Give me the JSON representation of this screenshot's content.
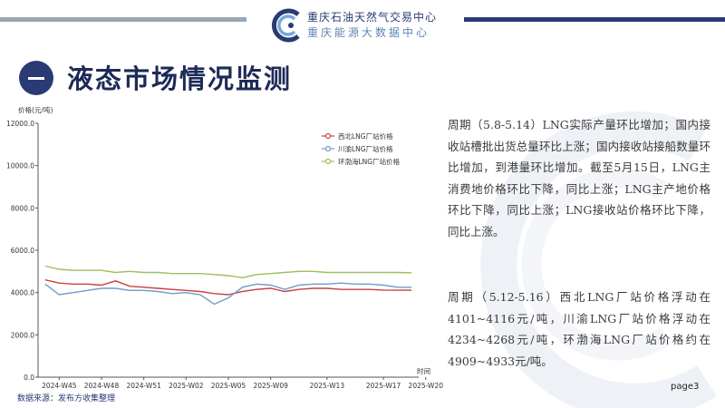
{
  "header": {
    "org_name": "重庆石油天然气交易中心",
    "org_sub": "重庆能源大数据中心",
    "section_num": "一",
    "section_title": "液态市场情况监测"
  },
  "text": {
    "para1": "周期（5.8-5.14）LNG实际产量环比增加；国内接收站槽批出货总量环比上涨；国内接收站接船数量环比增加，到港量环比增加。截至5月15日，LNG主消费地价格环比下降，同比上涨；LNG主产地价格环比下降，同比上涨；LNG接收站价格环比下降，同比上涨。",
    "para2": "周期（5.12-5.16）西北LNG厂站价格浮动在4101~4116元/吨，川渝LNG厂站价格浮动在4234~4268元/吨，环渤海LNG厂站价格约在4909~4933元/吨。"
  },
  "footer": {
    "source": "数据来源：发布方收集整理",
    "page": "page3"
  },
  "colors": {
    "navy": "#2a3a73",
    "northwest": "#c8423f",
    "sichuan": "#6f9cc8",
    "bohai": "#9cbf5d"
  },
  "chart_data": {
    "type": "line",
    "ylabel": "价格(元/吨)",
    "xlabel": "时间",
    "ylim": [
      0,
      12000
    ],
    "yticks": [
      "0.0",
      "2000.0",
      "4000.0",
      "6000.0",
      "8000.0",
      "10000.0",
      "12000.0"
    ],
    "xtick_labels": [
      "2024-W45",
      "2024-W48",
      "2024-W51",
      "2025-W02",
      "2025-W05",
      "2025-W09",
      "2025-W13",
      "2025-W17",
      "2025-W20"
    ],
    "xtick_index": [
      1,
      4,
      7,
      10,
      13,
      16,
      20,
      24,
      27
    ],
    "legend_position": "top-right",
    "grid": false,
    "series": [
      {
        "name": "西北LNG厂站价格",
        "color": "#c8423f",
        "values": [
          4600,
          4450,
          4400,
          4400,
          4350,
          4550,
          4300,
          4250,
          4200,
          4150,
          4100,
          4050,
          3950,
          3900,
          4050,
          4150,
          4200,
          4050,
          4150,
          4200,
          4200,
          4150,
          4150,
          4150,
          4120,
          4110,
          4110
        ]
      },
      {
        "name": "川渝LNG厂站价格",
        "color": "#6f9cc8",
        "values": [
          4400,
          3900,
          4000,
          4100,
          4200,
          4200,
          4100,
          4100,
          4050,
          3950,
          4000,
          3900,
          3450,
          3750,
          4250,
          4400,
          4350,
          4150,
          4350,
          4400,
          4400,
          4450,
          4400,
          4400,
          4350,
          4250,
          4250
        ]
      },
      {
        "name": "环渤海LNG厂站价格",
        "color": "#9cbf5d",
        "values": [
          5250,
          5100,
          5050,
          5050,
          5050,
          4950,
          5000,
          4950,
          4950,
          4900,
          4900,
          4900,
          4850,
          4800,
          4700,
          4850,
          4900,
          4950,
          5000,
          5000,
          4950,
          4950,
          4950,
          4950,
          4950,
          4950,
          4930
        ]
      }
    ]
  }
}
